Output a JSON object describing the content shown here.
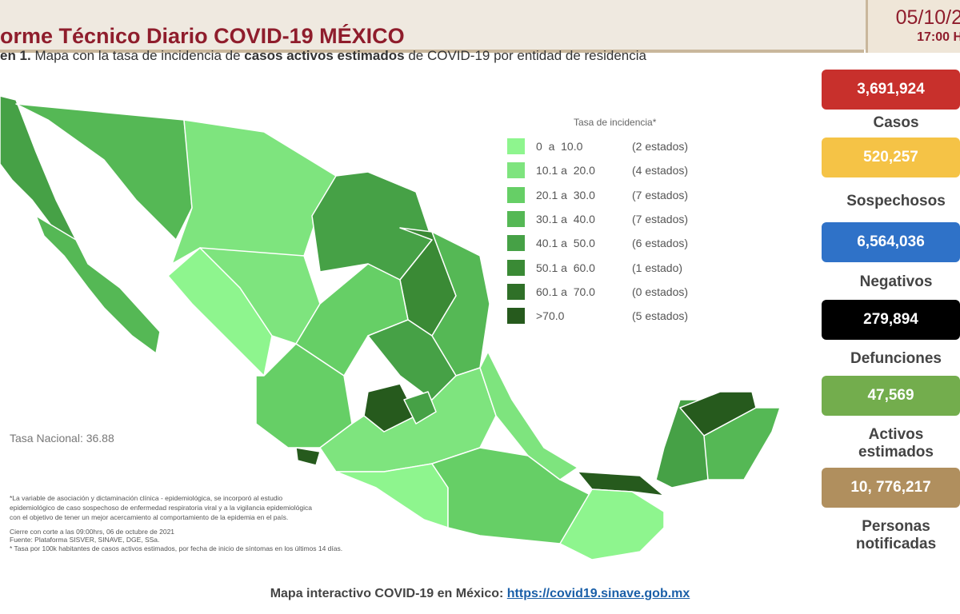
{
  "header": {
    "title": "orme Técnico Diario COVID-19 MÉXICO",
    "date": "05/10/2",
    "time": "17:00 H"
  },
  "subtitle": [
    "en 1.",
    " Mapa con la tasa de incidencia de ",
    "casos activos estimados",
    " de COVID-19 por entidad de residencia"
  ],
  "legend": {
    "title": "Tasa de incidencia*",
    "items": [
      {
        "range": "0  a  10.0",
        "count": "(2 estados)",
        "color": "#8ef58e"
      },
      {
        "range": "10.1 a  20.0",
        "count": "(4 estados)",
        "color": "#7ee47e"
      },
      {
        "range": "20.1 a  30.0",
        "count": "(7 estados)",
        "color": "#66cf66"
      },
      {
        "range": "30.1 a  40.0",
        "count": "(7 estados)",
        "color": "#55b855"
      },
      {
        "range": "40.1 a  50.0",
        "count": "(6 estados)",
        "color": "#46a146"
      },
      {
        "range": "50.1 a  60.0",
        "count": "(1 estado)",
        "color": "#3a8a35"
      },
      {
        "range": "60.1 a  70.0",
        "count": "(0 estados)",
        "color": "#2f7028"
      },
      {
        "range": ">70.0",
        "count": "(5 estados)",
        "color": "#265a1d"
      }
    ]
  },
  "national_rate": "Tasa Nacional: 36.88",
  "stats": [
    {
      "value": "3,691,924",
      "label": "Casos",
      "color": "#c8302c"
    },
    {
      "value": "520,257",
      "label": "Sospechosos",
      "color": "#f5c346"
    },
    {
      "value": "6,564,036",
      "label": "Negativos",
      "color": "#2f72c8"
    },
    {
      "value": "279,894",
      "label": "Defunciones",
      "color": "#000000"
    },
    {
      "value": "47,569",
      "label": "Activos estimados",
      "color": "#73ad4d"
    },
    {
      "value": "10, 776,217",
      "label": "Personas notificadas",
      "color": "#b08f5e"
    }
  ],
  "footnotes": [
    "*La variable de asociación y dictaminación clínica - epidemiológica, se incorporó al estudio",
    "epidemiológico de caso sospechoso de enfermedad respiratoria viral y a la vigilancia epidemiológica",
    "con el objetivo de tener un mejor acercamiento al comportamiento de la epidemia en el país.",
    "Cierre con corte a las 09:00hrs, 06 de octubre de 2021",
    "Fuente: Plataforma SISVER, SINAVE, DGE, SSa.",
    "* Tasa por 100k habitantes de casos activos estimados, por fecha de inicio de síntomas en los últimos 14 días."
  ],
  "footer": {
    "text": "Mapa interactivo COVID-19 en México: ",
    "link": "https://covid19.sinave.gob.mx"
  }
}
